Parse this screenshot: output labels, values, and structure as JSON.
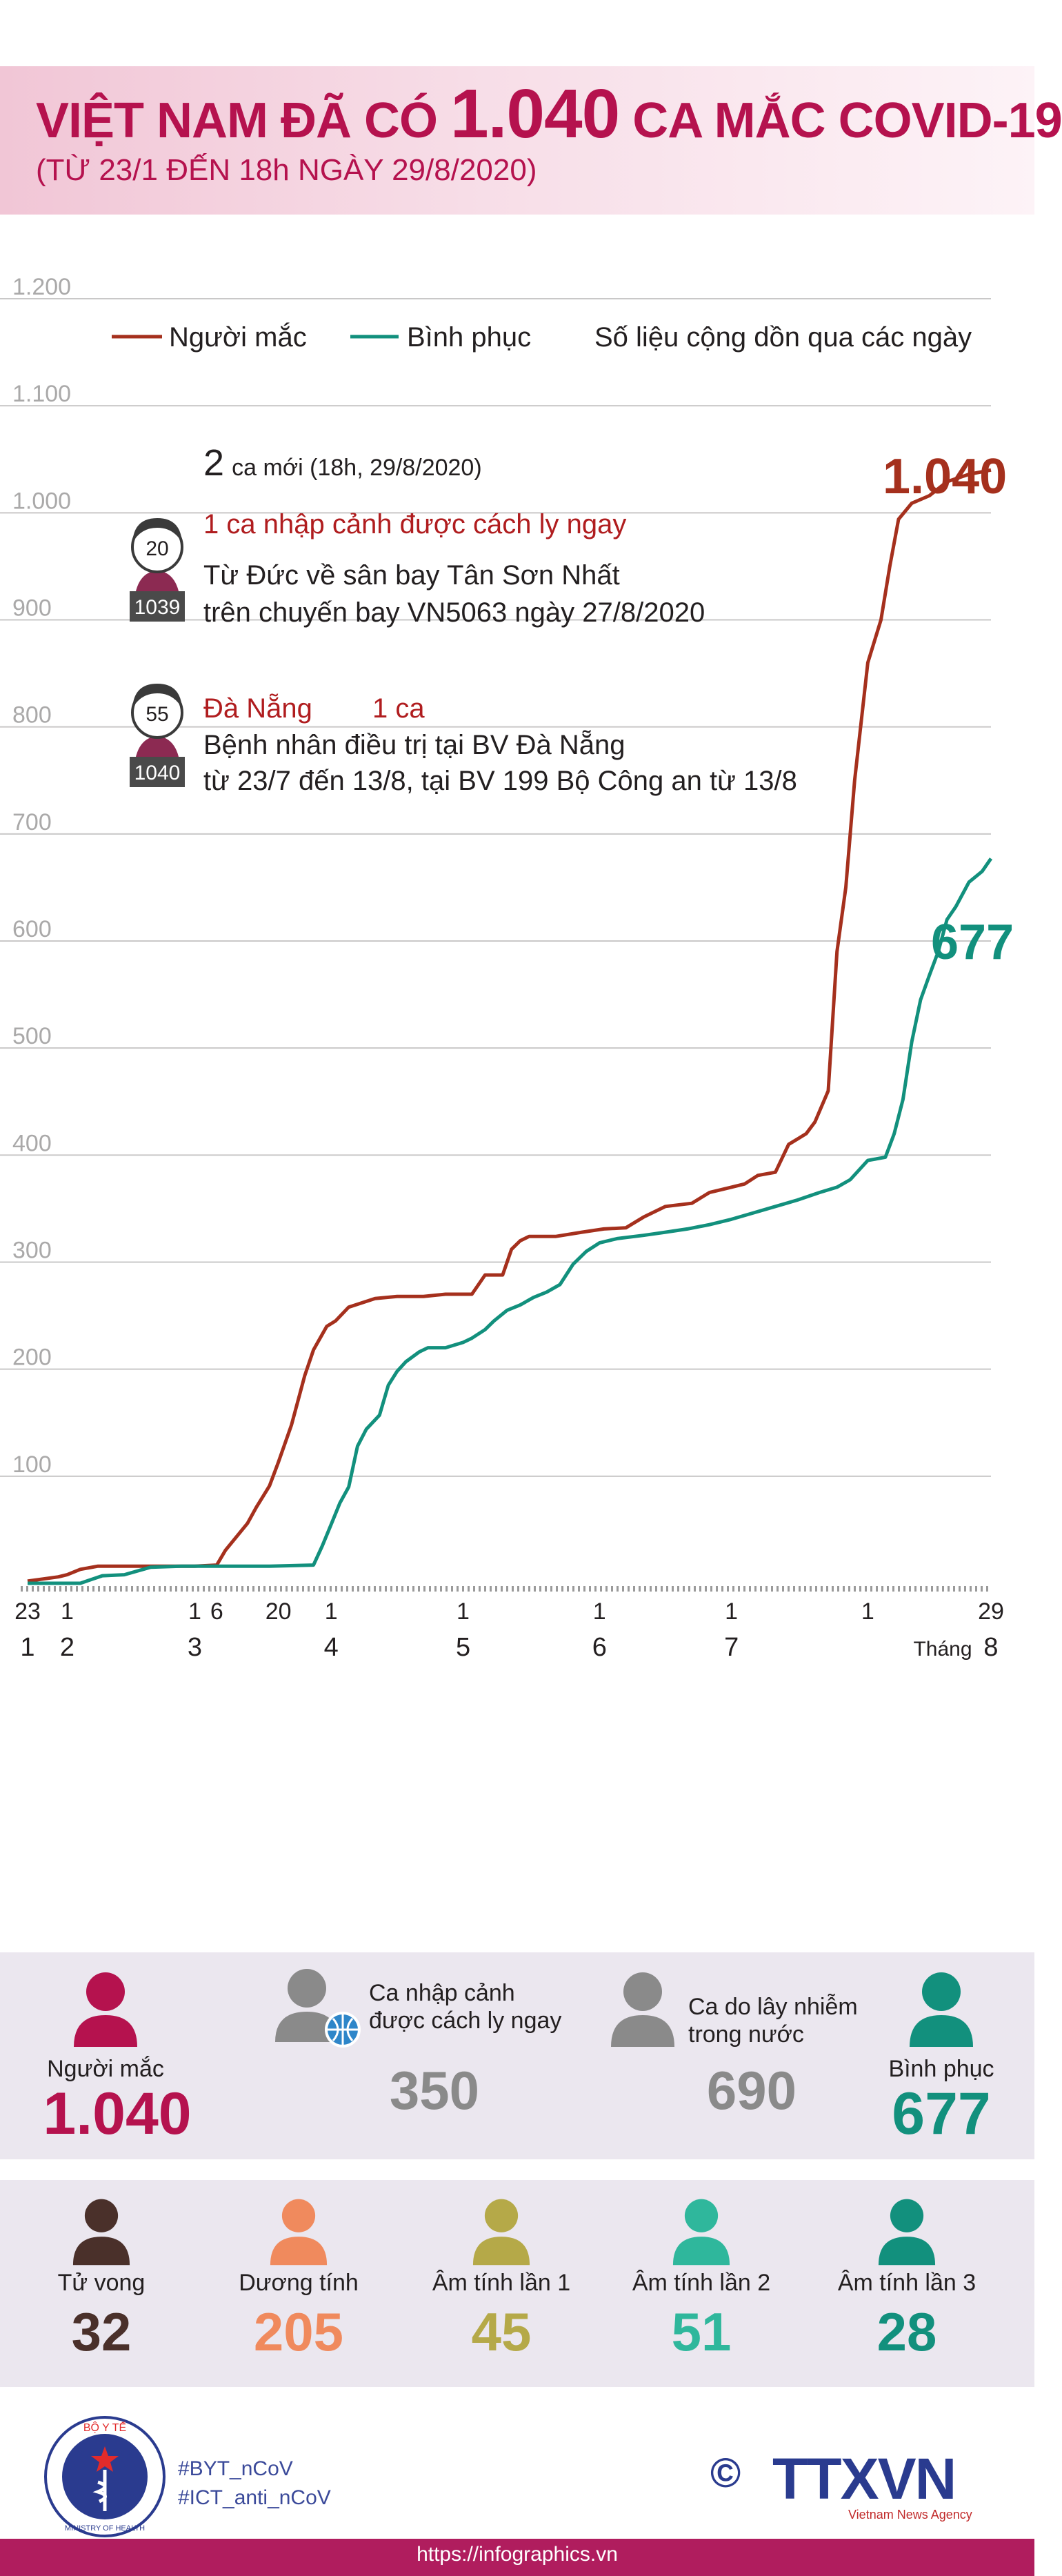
{
  "header": {
    "title_part1": "VIỆT NAM ĐÃ CÓ",
    "title_number": "1.040",
    "title_part2": "CA MẮC COVID-19",
    "subtitle": "(TỪ 23/1 ĐẾN 18h NGÀY 29/8/2020)"
  },
  "colors": {
    "brand": "#b5124e",
    "cases_line": "#a5301d",
    "recovered_line": "#12907d",
    "red_text": "#b01d1f",
    "grey_value": "#8a8a8a"
  },
  "chart_data": {
    "type": "line",
    "legend": [
      "Người mắc",
      "Bình phục"
    ],
    "legend_note": "Số liệu cộng dồn qua các ngày",
    "y_ticks": [
      "1.200",
      "1.100",
      "1.000",
      "900",
      "800",
      "700",
      "600",
      "500",
      "400",
      "300",
      "200",
      "100"
    ],
    "ylim": [
      0,
      1200
    ],
    "x_day_ticks": [
      {
        "day": 0,
        "label": "23"
      },
      {
        "day": 9,
        "label": "1"
      },
      {
        "day": 38,
        "label": "1"
      },
      {
        "day": 43,
        "label": "6"
      },
      {
        "day": 57,
        "label": "20"
      },
      {
        "day": 69,
        "label": "1"
      },
      {
        "day": 99,
        "label": "1"
      },
      {
        "day": 130,
        "label": "1"
      },
      {
        "day": 160,
        "label": "1"
      },
      {
        "day": 191,
        "label": "1"
      },
      {
        "day": 219,
        "label": "29"
      }
    ],
    "x_month_ticks": [
      {
        "day": 0,
        "label": "1"
      },
      {
        "day": 9,
        "label": "2"
      },
      {
        "day": 38,
        "label": "3"
      },
      {
        "day": 69,
        "label": "4"
      },
      {
        "day": 99,
        "label": "5"
      },
      {
        "day": 130,
        "label": "6"
      },
      {
        "day": 160,
        "label": "7"
      },
      {
        "day": 219,
        "label": "8"
      }
    ],
    "x_month_prefix": "Tháng",
    "xlim": [
      0,
      219
    ],
    "series": [
      {
        "name": "Người mắc",
        "color": "#a5301d",
        "end_label": "1.040",
        "points": [
          [
            0,
            2
          ],
          [
            7,
            6
          ],
          [
            9,
            8
          ],
          [
            12,
            13
          ],
          [
            16,
            16
          ],
          [
            20,
            16
          ],
          [
            30,
            16
          ],
          [
            38,
            16
          ],
          [
            43,
            17
          ],
          [
            45,
            31
          ],
          [
            50,
            56
          ],
          [
            52,
            71
          ],
          [
            55,
            91
          ],
          [
            57,
            113
          ],
          [
            60,
            148
          ],
          [
            63,
            194
          ],
          [
            65,
            218
          ],
          [
            68,
            240
          ],
          [
            70,
            245
          ],
          [
            73,
            258
          ],
          [
            76,
            262
          ],
          [
            79,
            266
          ],
          [
            84,
            268
          ],
          [
            90,
            268
          ],
          [
            95,
            270
          ],
          [
            101,
            270
          ],
          [
            104,
            288
          ],
          [
            108,
            288
          ],
          [
            110,
            312
          ],
          [
            112,
            320
          ],
          [
            114,
            324
          ],
          [
            120,
            324
          ],
          [
            126,
            328
          ],
          [
            131,
            331
          ],
          [
            136,
            332
          ],
          [
            140,
            342
          ],
          [
            145,
            352
          ],
          [
            151,
            355
          ],
          [
            155,
            365
          ],
          [
            159,
            369
          ],
          [
            163,
            373
          ],
          [
            166,
            381
          ],
          [
            170,
            384
          ],
          [
            173,
            410
          ],
          [
            175,
            415
          ],
          [
            177,
            420
          ],
          [
            179,
            431
          ],
          [
            182,
            460
          ],
          [
            184,
            590
          ],
          [
            186,
            650
          ],
          [
            188,
            750
          ],
          [
            191,
            860
          ],
          [
            194,
            900
          ],
          [
            196,
            950
          ],
          [
            198,
            994
          ],
          [
            201,
            1009
          ],
          [
            205,
            1016
          ],
          [
            209,
            1029
          ],
          [
            214,
            1036
          ],
          [
            219,
            1040
          ]
        ]
      },
      {
        "name": "Bình phục",
        "color": "#12907d",
        "end_label": "677",
        "points": [
          [
            0,
            0
          ],
          [
            12,
            0
          ],
          [
            17,
            7
          ],
          [
            22,
            8
          ],
          [
            28,
            15
          ],
          [
            35,
            16
          ],
          [
            45,
            16
          ],
          [
            55,
            16
          ],
          [
            65,
            17
          ],
          [
            67,
            35
          ],
          [
            69,
            55
          ],
          [
            71,
            75
          ],
          [
            73,
            90
          ],
          [
            75,
            128
          ],
          [
            77,
            144
          ],
          [
            80,
            157
          ],
          [
            82,
            185
          ],
          [
            84,
            198
          ],
          [
            86,
            207
          ],
          [
            89,
            216
          ],
          [
            91,
            220
          ],
          [
            95,
            220
          ],
          [
            99,
            225
          ],
          [
            101,
            229
          ],
          [
            104,
            237
          ],
          [
            106,
            245
          ],
          [
            109,
            255
          ],
          [
            112,
            260
          ],
          [
            115,
            267
          ],
          [
            118,
            272
          ],
          [
            121,
            279
          ],
          [
            124,
            298
          ],
          [
            127,
            310
          ],
          [
            130,
            318
          ],
          [
            134,
            322
          ],
          [
            140,
            325
          ],
          [
            145,
            328
          ],
          [
            150,
            331
          ],
          [
            155,
            335
          ],
          [
            160,
            340
          ],
          [
            165,
            346
          ],
          [
            170,
            352
          ],
          [
            175,
            358
          ],
          [
            180,
            365
          ],
          [
            184,
            370
          ],
          [
            187,
            377
          ],
          [
            191,
            395
          ],
          [
            195,
            398
          ],
          [
            197,
            420
          ],
          [
            199,
            452
          ],
          [
            201,
            506
          ],
          [
            203,
            545
          ],
          [
            205,
            568
          ],
          [
            207,
            590
          ],
          [
            209,
            620
          ],
          [
            211,
            632
          ],
          [
            214,
            655
          ],
          [
            217,
            665
          ],
          [
            219,
            677
          ]
        ]
      }
    ]
  },
  "annotation": {
    "new_cases_count": "2",
    "new_cases_text": "ca mới (18h, 29/8/2020)",
    "patient1": {
      "age": "20",
      "id": "1039",
      "title": "1 ca nhập cảnh được cách ly ngay",
      "line1": "Từ Đức về sân bay Tân Sơn Nhất",
      "line2": "trên chuyến bay VN5063 ngày 27/8/2020"
    },
    "patient2": {
      "age": "55",
      "id": "1040",
      "title_place": "Đà Nẵng",
      "title_count": "1 ca",
      "line1": "Bệnh nhân điều trị tại BV Đà Nẵng",
      "line2": "từ 23/7 đến 13/8, tại BV 199 Bộ Công an từ 13/8"
    }
  },
  "stats_row1": [
    {
      "label": "Người mắc",
      "value": "1.040",
      "color": "#b5124e",
      "icon": "person-icon"
    },
    {
      "label_line1": "Ca nhập cảnh",
      "label_line2": "được cách ly ngay",
      "value": "350",
      "color": "#8a8a8a",
      "icon": "person-globe-icon"
    },
    {
      "label_line1": "Ca do lây nhiễm",
      "label_line2": "trong nước",
      "value": "690",
      "color": "#8a8a8a",
      "icon": "person-icon"
    },
    {
      "label": "Bình phục",
      "value": "677",
      "color": "#12907d",
      "icon": "person-icon"
    }
  ],
  "stats_row2": [
    {
      "label": "Tử vong",
      "value": "32",
      "color": "#4a302a"
    },
    {
      "label": "Dương tính",
      "value": "205",
      "color": "#f08a5d"
    },
    {
      "label": "Âm tính lần 1",
      "value": "45",
      "color": "#b5a948"
    },
    {
      "label": "Âm tính lần 2",
      "value": "51",
      "color": "#2fb79c"
    },
    {
      "label": "Âm tính lần 3",
      "value": "28",
      "color": "#12907d"
    }
  ],
  "footer": {
    "ministry_top": "BỘ Y TẾ",
    "ministry_bottom": "MINISTRY OF HEALTH",
    "hashtag1": "#BYT_nCoV",
    "hashtag2": "#ICT_anti_nCoV",
    "copyright": "©",
    "agency": "TTXVN",
    "agency_sub": "Vietnam News Agency",
    "url": "https://infographics.vn"
  }
}
